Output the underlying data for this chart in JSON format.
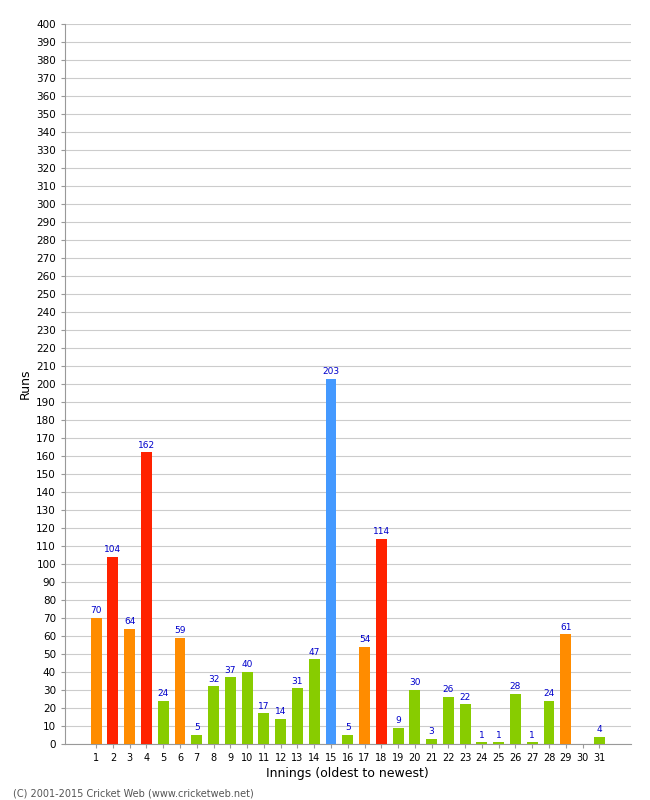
{
  "innings": [
    1,
    2,
    3,
    4,
    5,
    6,
    7,
    8,
    9,
    10,
    11,
    12,
    13,
    14,
    15,
    16,
    17,
    18,
    19,
    20,
    21,
    22,
    23,
    24,
    25,
    26,
    27,
    28,
    29,
    30,
    31
  ],
  "values": [
    70,
    104,
    64,
    162,
    24,
    59,
    5,
    32,
    37,
    40,
    17,
    14,
    31,
    47,
    203,
    5,
    54,
    114,
    9,
    30,
    3,
    26,
    22,
    1,
    1,
    28,
    1,
    24,
    61,
    0,
    4
  ],
  "colors": [
    "#ff8c00",
    "#ff2200",
    "#ff8c00",
    "#ff2200",
    "#88cc00",
    "#ff8c00",
    "#88cc00",
    "#88cc00",
    "#88cc00",
    "#88cc00",
    "#88cc00",
    "#88cc00",
    "#88cc00",
    "#88cc00",
    "#4499ff",
    "#88cc00",
    "#ff8c00",
    "#ff2200",
    "#88cc00",
    "#88cc00",
    "#88cc00",
    "#88cc00",
    "#88cc00",
    "#88cc00",
    "#88cc00",
    "#88cc00",
    "#88cc00",
    "#88cc00",
    "#ff8c00",
    "#88cc00",
    "#88cc00"
  ],
  "xlabel": "Innings (oldest to newest)",
  "ylabel": "Runs",
  "ylim": [
    0,
    400
  ],
  "yticks": [
    0,
    10,
    20,
    30,
    40,
    50,
    60,
    70,
    80,
    90,
    100,
    110,
    120,
    130,
    140,
    150,
    160,
    170,
    180,
    190,
    200,
    210,
    220,
    230,
    240,
    250,
    260,
    270,
    280,
    290,
    300,
    310,
    320,
    330,
    340,
    350,
    360,
    370,
    380,
    390,
    400
  ],
  "label_color": "#0000cc",
  "bg_color": "#ffffff",
  "grid_color": "#cccccc",
  "footer": "(C) 2001-2015 Cricket Web (www.cricketweb.net)",
  "bar_width": 0.65
}
